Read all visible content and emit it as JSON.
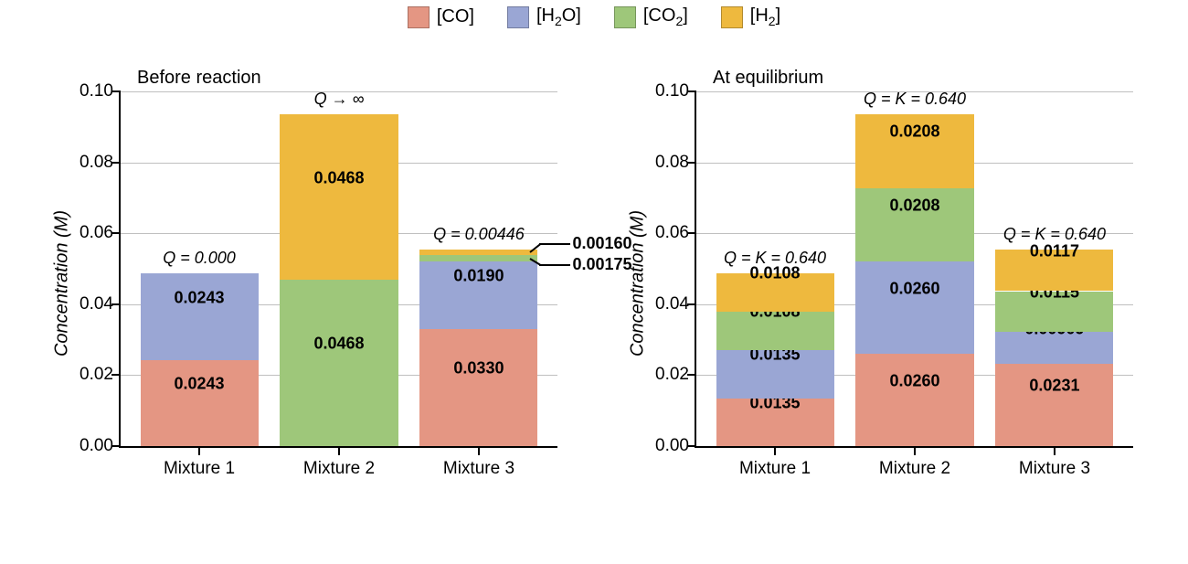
{
  "colors": {
    "CO": "#e49683",
    "H2O": "#9aa6d4",
    "CO2": "#9ec77a",
    "H2": "#eeb93e",
    "grid": "#bfbfbf",
    "axis": "#000000",
    "bg": "#ffffff"
  },
  "legend": {
    "items": [
      {
        "key": "CO",
        "label_html": "[CO]"
      },
      {
        "key": "H2O",
        "label_html": "[H<sub>2</sub>O]"
      },
      {
        "key": "CO2",
        "label_html": "[CO<sub>2</sub>]"
      },
      {
        "key": "H2",
        "label_html": "[H<sub>2</sub>]"
      }
    ]
  },
  "axis": {
    "ylabel_html": "Concentration (<span class='unit'><i>M</i></span>)",
    "ymin": 0,
    "ymax": 0.1,
    "yticks": [
      0.0,
      0.02,
      0.04,
      0.06,
      0.08,
      0.1
    ],
    "ytick_labels": [
      "0.00",
      "0.02",
      "0.04",
      "0.06",
      "0.08",
      "0.10"
    ],
    "categories": [
      "Mixture 1",
      "Mixture 2",
      "Mixture 3"
    ],
    "bar_width_frac": 0.27,
    "bar_gap_frac": 0.05,
    "label_fontsize": 19,
    "value_fontsize": 18
  },
  "panels": [
    {
      "title": "Before reaction",
      "bars": [
        {
          "top_label": "Q = 0.000",
          "segments": [
            {
              "key": "CO",
              "value": 0.0243,
              "label": "0.0243"
            },
            {
              "key": "H2O",
              "value": 0.0243,
              "label": "0.0243"
            }
          ]
        },
        {
          "top_label": "Q → ∞",
          "segments": [
            {
              "key": "CO2",
              "value": 0.0468,
              "label": "0.0468"
            },
            {
              "key": "H2",
              "value": 0.0468,
              "label": "0.0468"
            }
          ]
        },
        {
          "top_label": "Q = 0.00446",
          "segments": [
            {
              "key": "CO",
              "value": 0.033,
              "label": "0.0330"
            },
            {
              "key": "H2O",
              "value": 0.019,
              "label": "0.0190"
            },
            {
              "key": "CO2",
              "value": 0.00175,
              "label": "0.00175",
              "callout": true,
              "callout_y": 0.051
            },
            {
              "key": "H2",
              "value": 0.0016,
              "label": "0.00160",
              "callout": true,
              "callout_y": 0.057
            }
          ]
        }
      ]
    },
    {
      "title": "At equilibrium",
      "bars": [
        {
          "top_label": "Q = K = 0.640",
          "segments": [
            {
              "key": "CO",
              "value": 0.0135,
              "label": "0.0135"
            },
            {
              "key": "H2O",
              "value": 0.0135,
              "label": "0.0135"
            },
            {
              "key": "CO2",
              "value": 0.0108,
              "label": "0.0108"
            },
            {
              "key": "H2",
              "value": 0.0108,
              "label": "0.0108"
            }
          ]
        },
        {
          "top_label": "Q = K = 0.640",
          "segments": [
            {
              "key": "CO",
              "value": 0.026,
              "label": "0.0260"
            },
            {
              "key": "H2O",
              "value": 0.026,
              "label": "0.0260"
            },
            {
              "key": "CO2",
              "value": 0.0208,
              "label": "0.0208"
            },
            {
              "key": "H2",
              "value": 0.0208,
              "label": "0.0208"
            }
          ]
        },
        {
          "top_label": "Q = K = 0.640",
          "segments": [
            {
              "key": "CO",
              "value": 0.0231,
              "label": "0.0231"
            },
            {
              "key": "H2O",
              "value": 0.00909,
              "label": "0.00909"
            },
            {
              "key": "CO2",
              "value": 0.0115,
              "label": "0.0115"
            },
            {
              "key": "H2",
              "value": 0.0117,
              "label": "0.0117"
            }
          ]
        }
      ]
    }
  ]
}
